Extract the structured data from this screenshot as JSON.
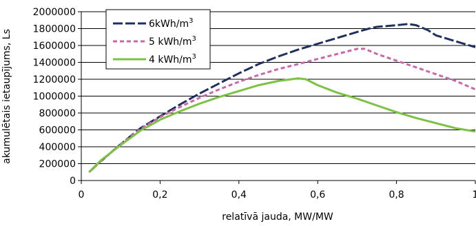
{
  "chart_data": {
    "type": "line",
    "xlabel": "relatīvā jauda, MW/MW",
    "ylabel": "akumulētais ietaupījums, Ls",
    "xlim": [
      0,
      1
    ],
    "ylim": [
      0,
      2000000
    ],
    "x_ticks": [
      "0",
      "0,2",
      "0,4",
      "0,6",
      "0,8",
      "1"
    ],
    "x_tick_values": [
      0,
      0.2,
      0.4,
      0.6,
      0.8,
      1
    ],
    "y_ticks": [
      "0",
      "200000",
      "400000",
      "600000",
      "800000",
      "1000000",
      "1200000",
      "1400000",
      "1600000",
      "1800000",
      "2000000"
    ],
    "y_tick_values": [
      0,
      200000,
      400000,
      600000,
      800000,
      1000000,
      1200000,
      1400000,
      1600000,
      1800000,
      2000000
    ],
    "grid": "horizontal",
    "legend_position": "top-left",
    "series": [
      {
        "name": "6kWh/m",
        "superscript": "3",
        "color": "#1f2f5f",
        "dash": "dash",
        "points": [
          [
            0.02,
            100000
          ],
          [
            0.05,
            230000
          ],
          [
            0.1,
            430000
          ],
          [
            0.15,
            620000
          ],
          [
            0.2,
            760000
          ],
          [
            0.25,
            900000
          ],
          [
            0.3,
            1030000
          ],
          [
            0.35,
            1150000
          ],
          [
            0.4,
            1270000
          ],
          [
            0.45,
            1380000
          ],
          [
            0.5,
            1470000
          ],
          [
            0.55,
            1550000
          ],
          [
            0.6,
            1620000
          ],
          [
            0.65,
            1690000
          ],
          [
            0.7,
            1760000
          ],
          [
            0.73,
            1800000
          ],
          [
            0.75,
            1820000
          ],
          [
            0.8,
            1840000
          ],
          [
            0.83,
            1855000
          ],
          [
            0.85,
            1840000
          ],
          [
            0.88,
            1780000
          ],
          [
            0.9,
            1720000
          ],
          [
            0.95,
            1650000
          ],
          [
            1.0,
            1580000
          ]
        ]
      },
      {
        "name": "5 kWh/m",
        "superscript": "3",
        "color": "#cc66aa",
        "dash": "short-dash",
        "points": [
          [
            0.02,
            100000
          ],
          [
            0.05,
            230000
          ],
          [
            0.1,
            430000
          ],
          [
            0.15,
            610000
          ],
          [
            0.2,
            750000
          ],
          [
            0.25,
            870000
          ],
          [
            0.3,
            980000
          ],
          [
            0.35,
            1080000
          ],
          [
            0.4,
            1170000
          ],
          [
            0.45,
            1250000
          ],
          [
            0.5,
            1320000
          ],
          [
            0.55,
            1380000
          ],
          [
            0.6,
            1440000
          ],
          [
            0.65,
            1500000
          ],
          [
            0.7,
            1560000
          ],
          [
            0.72,
            1560000
          ],
          [
            0.75,
            1500000
          ],
          [
            0.8,
            1420000
          ],
          [
            0.85,
            1340000
          ],
          [
            0.9,
            1260000
          ],
          [
            0.95,
            1180000
          ],
          [
            1.0,
            1080000
          ]
        ]
      },
      {
        "name": "4 kWh/m",
        "superscript": "3",
        "color": "#7cc242",
        "dash": "solid",
        "points": [
          [
            0.02,
            100000
          ],
          [
            0.05,
            240000
          ],
          [
            0.1,
            420000
          ],
          [
            0.15,
            590000
          ],
          [
            0.2,
            720000
          ],
          [
            0.25,
            820000
          ],
          [
            0.3,
            910000
          ],
          [
            0.35,
            990000
          ],
          [
            0.4,
            1060000
          ],
          [
            0.45,
            1130000
          ],
          [
            0.5,
            1180000
          ],
          [
            0.55,
            1210000
          ],
          [
            0.57,
            1200000
          ],
          [
            0.6,
            1130000
          ],
          [
            0.65,
            1040000
          ],
          [
            0.7,
            970000
          ],
          [
            0.75,
            890000
          ],
          [
            0.8,
            810000
          ],
          [
            0.85,
            740000
          ],
          [
            0.9,
            680000
          ],
          [
            0.95,
            620000
          ],
          [
            1.0,
            580000
          ]
        ]
      }
    ]
  }
}
